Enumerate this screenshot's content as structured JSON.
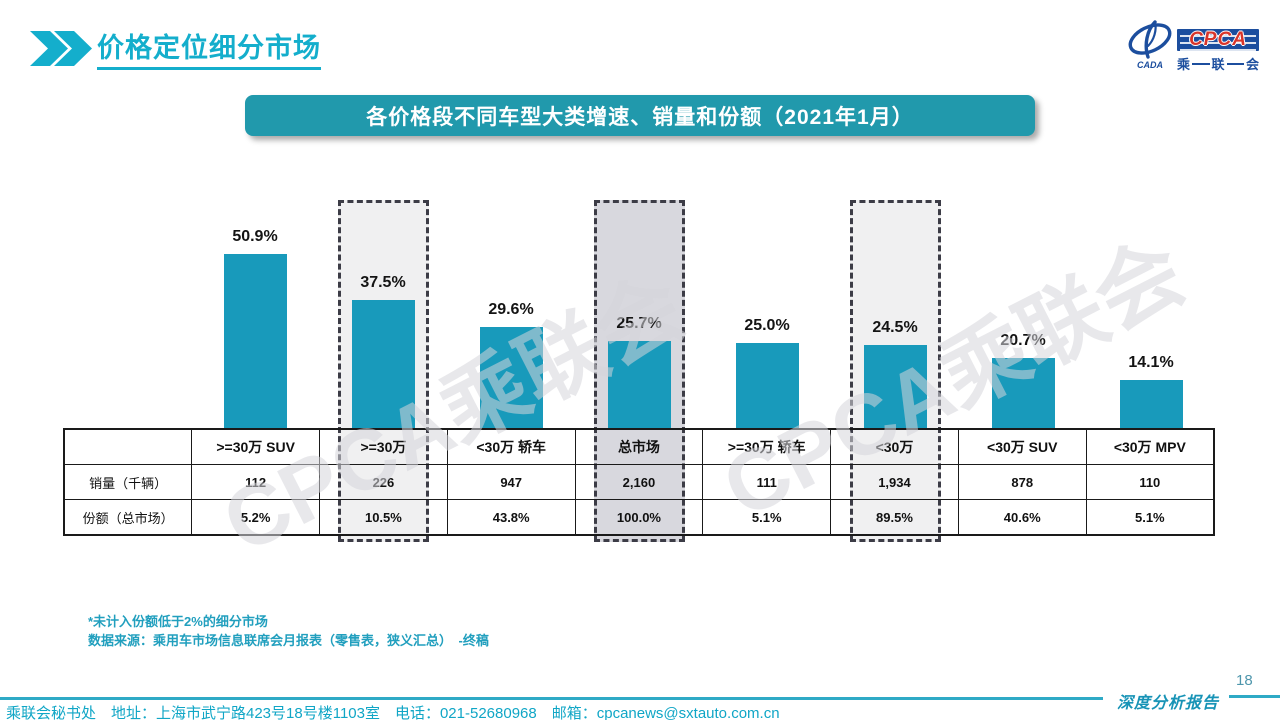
{
  "header": {
    "title": "价格定位细分市场"
  },
  "logo": {
    "cpca": "CPCA",
    "cada": "CADA",
    "cn_chars": [
      "乘",
      "联",
      "会"
    ]
  },
  "banner": {
    "title": "各价格段不同车型大类增速、销量和份额（2021年1月）"
  },
  "watermark": {
    "text": "CPCA乘联会"
  },
  "chart_data": {
    "type": "bar",
    "title": "各价格段不同车型大类增速、销量和份额（2021年1月）",
    "categories": [
      ">=30万 SUV",
      ">=30万",
      "<30万 轿车",
      "总市场",
      ">=30万 轿车",
      "<30万",
      "<30万 SUV",
      "<30万 MPV"
    ],
    "series": [
      {
        "name": "增速",
        "values": [
          50.9,
          37.5,
          29.6,
          25.7,
          25.0,
          24.5,
          20.7,
          14.1
        ]
      }
    ],
    "value_labels": [
      "50.9%",
      "37.5%",
      "29.6%",
      "25.7%",
      "25.0%",
      "24.5%",
      "20.7%",
      "14.1%"
    ],
    "highlight_indices": [
      1,
      3,
      5
    ],
    "dark_highlight_index": 3,
    "ylim": [
      0,
      60
    ],
    "grid": false,
    "legend": false,
    "bar_color": "#189ABB",
    "table": {
      "row_labels": [
        "销量（千辆）",
        "份额（总市场）"
      ],
      "rows": [
        [
          "112",
          "226",
          "947",
          "2,160",
          "111",
          "1,934",
          "878",
          "110"
        ],
        [
          "5.2%",
          "10.5%",
          "43.8%",
          "100.0%",
          "5.1%",
          "89.5%",
          "40.6%",
          "5.1%"
        ]
      ]
    }
  },
  "notes": {
    "footnote": "*未计入份额低于2%的细分市场",
    "source": "数据来源：乘用车市场信息联席会月报表（零售表，狭义汇总）　-终稿"
  },
  "footer": {
    "contact": "乘联会秘书处　地址：上海市武宁路423号18号楼1103室　电话：021-52680968　邮箱：cpcanews@sxtauto.com.cn",
    "report_label": "深度分析报告",
    "page_number": "18"
  },
  "colors": {
    "accent": "#14AECC",
    "banner": "#2199AC",
    "bar": "#189ABB",
    "highlight_light": "#F0F0F1",
    "highlight_dark": "#D8D8DE",
    "logo_blue": "#1C4E9E",
    "logo_red": "#D9352A"
  }
}
